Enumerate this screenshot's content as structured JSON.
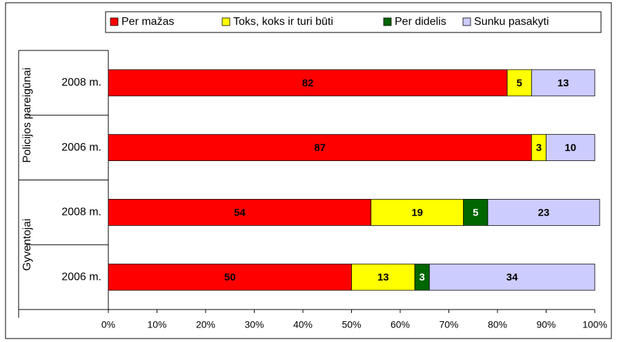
{
  "chart_data": {
    "type": "stacked-bar-horizontal",
    "categories": [
      "2008 m.",
      "2006 m.",
      "2008 m.",
      "2006 m."
    ],
    "groups": [
      "Policijos pareigūnai",
      "Gyventojai"
    ],
    "series": [
      {
        "name": "Per mažas",
        "color": "#ff0000",
        "values": [
          82,
          87,
          54,
          50
        ]
      },
      {
        "name": "Toks, koks ir turi būti",
        "color": "#ffff00",
        "values": [
          5,
          3,
          19,
          13
        ]
      },
      {
        "name": "Per didelis",
        "color": "#006600",
        "values": [
          null,
          null,
          5,
          3
        ]
      },
      {
        "name": "Sunku pasakyti",
        "color": "#ccccff",
        "values": [
          13,
          10,
          23,
          34
        ]
      }
    ],
    "xlim": [
      0,
      100
    ],
    "xticks": [
      {
        "value": 0,
        "label": "0%"
      },
      {
        "value": 10,
        "label": "10%"
      },
      {
        "value": 20,
        "label": "20%"
      },
      {
        "value": 30,
        "label": "30%"
      },
      {
        "value": 40,
        "label": "40%"
      },
      {
        "value": 50,
        "label": "50%"
      },
      {
        "value": 60,
        "label": "60%"
      },
      {
        "value": 70,
        "label": "70%"
      },
      {
        "value": 80,
        "label": "80%"
      },
      {
        "value": 90,
        "label": "90%"
      },
      {
        "value": 100,
        "label": "100%"
      }
    ],
    "legend": "top"
  }
}
